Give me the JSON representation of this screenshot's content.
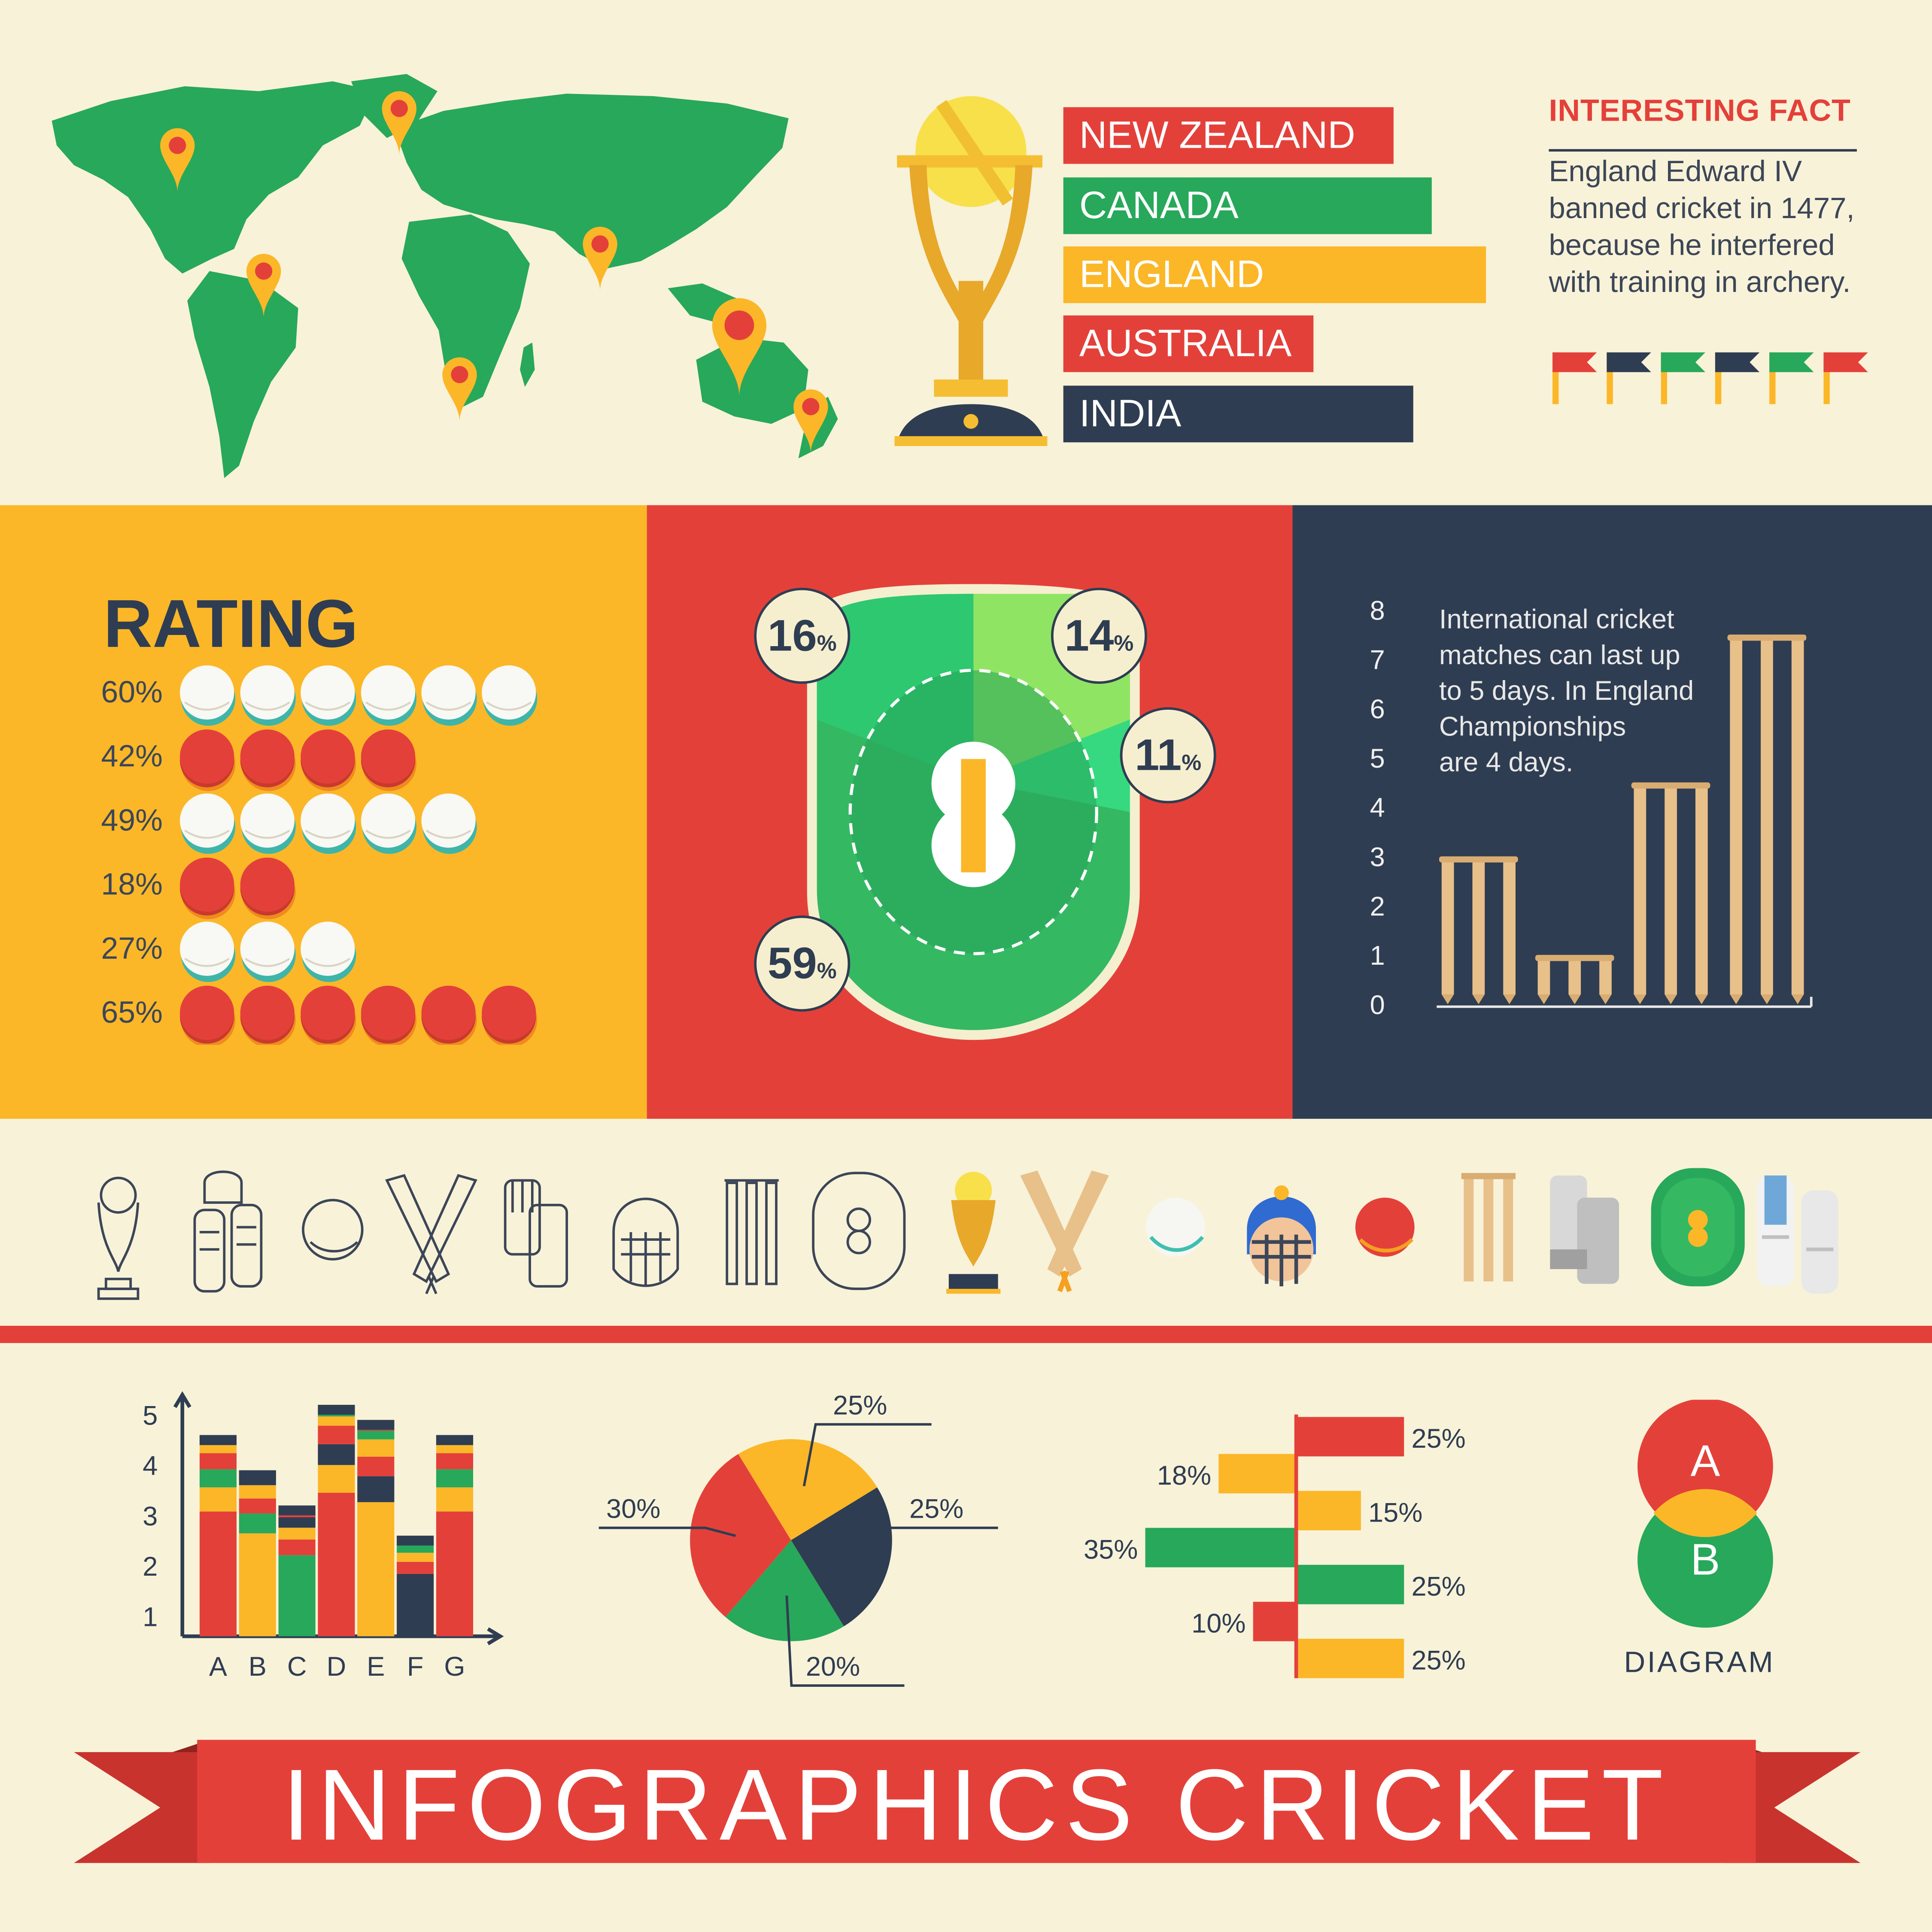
{
  "title": "INFOGRAPHICS CRICKET",
  "colors": {
    "red": "#e4403a",
    "green": "#27a85a",
    "yellow": "#fbb728",
    "navy": "#2f3d52",
    "cream": "#f8f2d8"
  },
  "countries": [
    {
      "name": "NEW ZEALAND",
      "color": "#e4403a"
    },
    {
      "name": "CANADA",
      "color": "#27a85a"
    },
    {
      "name": "ENGLAND",
      "color": "#fbb728"
    },
    {
      "name": "AUSTRALIA",
      "color": "#e4403a"
    },
    {
      "name": "INDIA",
      "color": "#2f3d52"
    }
  ],
  "fact": {
    "title": "INTERESTING FACT",
    "lines": [
      "England Edward IV",
      "banned cricket in 1477,",
      "because he interfered",
      "with training in archery."
    ]
  },
  "rating": {
    "title": "RATING",
    "rows": [
      {
        "label": "60%",
        "count": 6,
        "ball": "white"
      },
      {
        "label": "42%",
        "count": 4,
        "ball": "red"
      },
      {
        "label": "49%",
        "count": 5,
        "ball": "white"
      },
      {
        "label": "18%",
        "count": 2,
        "ball": "red"
      },
      {
        "label": "27%",
        "count": 3,
        "ball": "white"
      },
      {
        "label": "65%",
        "count": 6,
        "ball": "red"
      }
    ]
  },
  "field": {
    "badges": [
      {
        "value": "16",
        "unit": "%"
      },
      {
        "value": "14",
        "unit": "%"
      },
      {
        "value": "11",
        "unit": "%"
      },
      {
        "value": "59",
        "unit": "%"
      }
    ]
  },
  "stat": {
    "text_lines": [
      "International cricket",
      "matches can last up",
      "to 5 days. In England",
      "Championships",
      "are 4 days."
    ]
  },
  "icons": [
    "trophy-outline-icon",
    "pads-helmet-outline-icon",
    "ball-outline-icon",
    "crossed-bats-outline-icon",
    "gloves-outline-icon",
    "helmet-outline-icon",
    "stumps-outline-icon",
    "pitch-outline-icon",
    "trophy-color-icon",
    "crossed-bats-color-icon",
    "white-ball-icon",
    "batsman-helmet-icon",
    "red-ball-icon",
    "stumps-color-icon",
    "gloves-color-icon",
    "pitch-color-icon",
    "pads-color-icon"
  ],
  "chart_data": [
    {
      "type": "bar",
      "title": "",
      "y_ticks": [
        "0",
        "1",
        "2",
        "3",
        "4",
        "5",
        "6",
        "7",
        "8"
      ],
      "ylim": [
        0,
        8
      ],
      "values": [
        2.9,
        0.9,
        4.4,
        7.4
      ]
    },
    {
      "type": "bar",
      "categories": [
        "A",
        "B",
        "C",
        "D",
        "E",
        "F",
        "G"
      ],
      "y_ticks": [
        "1",
        "2",
        "3",
        "4",
        "5"
      ],
      "ylim": [
        0.6,
        5.4
      ],
      "values": [
        4.6,
        3.9,
        3.2,
        5.2,
        4.9,
        2.6,
        4.6
      ]
    },
    {
      "type": "pie",
      "slices": [
        {
          "label": "25%",
          "value": 25,
          "color": "#fbb728"
        },
        {
          "label": "25%",
          "value": 25,
          "color": "#2f3d52"
        },
        {
          "label": "20%",
          "value": 20,
          "color": "#27a85a"
        },
        {
          "label": "30%",
          "value": 30,
          "color": "#e4403a"
        }
      ]
    },
    {
      "type": "bar",
      "orientation": "horizontal-diverging",
      "rows": [
        {
          "label": "25%",
          "value": 25,
          "side": "right",
          "color": "#e4403a"
        },
        {
          "label": "18%",
          "value": 18,
          "side": "left",
          "color": "#fbb728"
        },
        {
          "label": "15%",
          "value": 15,
          "side": "right",
          "color": "#fbb728"
        },
        {
          "label": "35%",
          "value": 35,
          "side": "left",
          "color": "#27a85a"
        },
        {
          "label": "25%",
          "value": 25,
          "side": "right",
          "color": "#27a85a"
        },
        {
          "label": "10%",
          "value": 10,
          "side": "left",
          "color": "#e4403a"
        },
        {
          "label": "25%",
          "value": 25,
          "side": "right",
          "color": "#fbb728"
        }
      ]
    }
  ],
  "venn": {
    "a": "A",
    "b": "B",
    "label": "DIAGRAM"
  }
}
